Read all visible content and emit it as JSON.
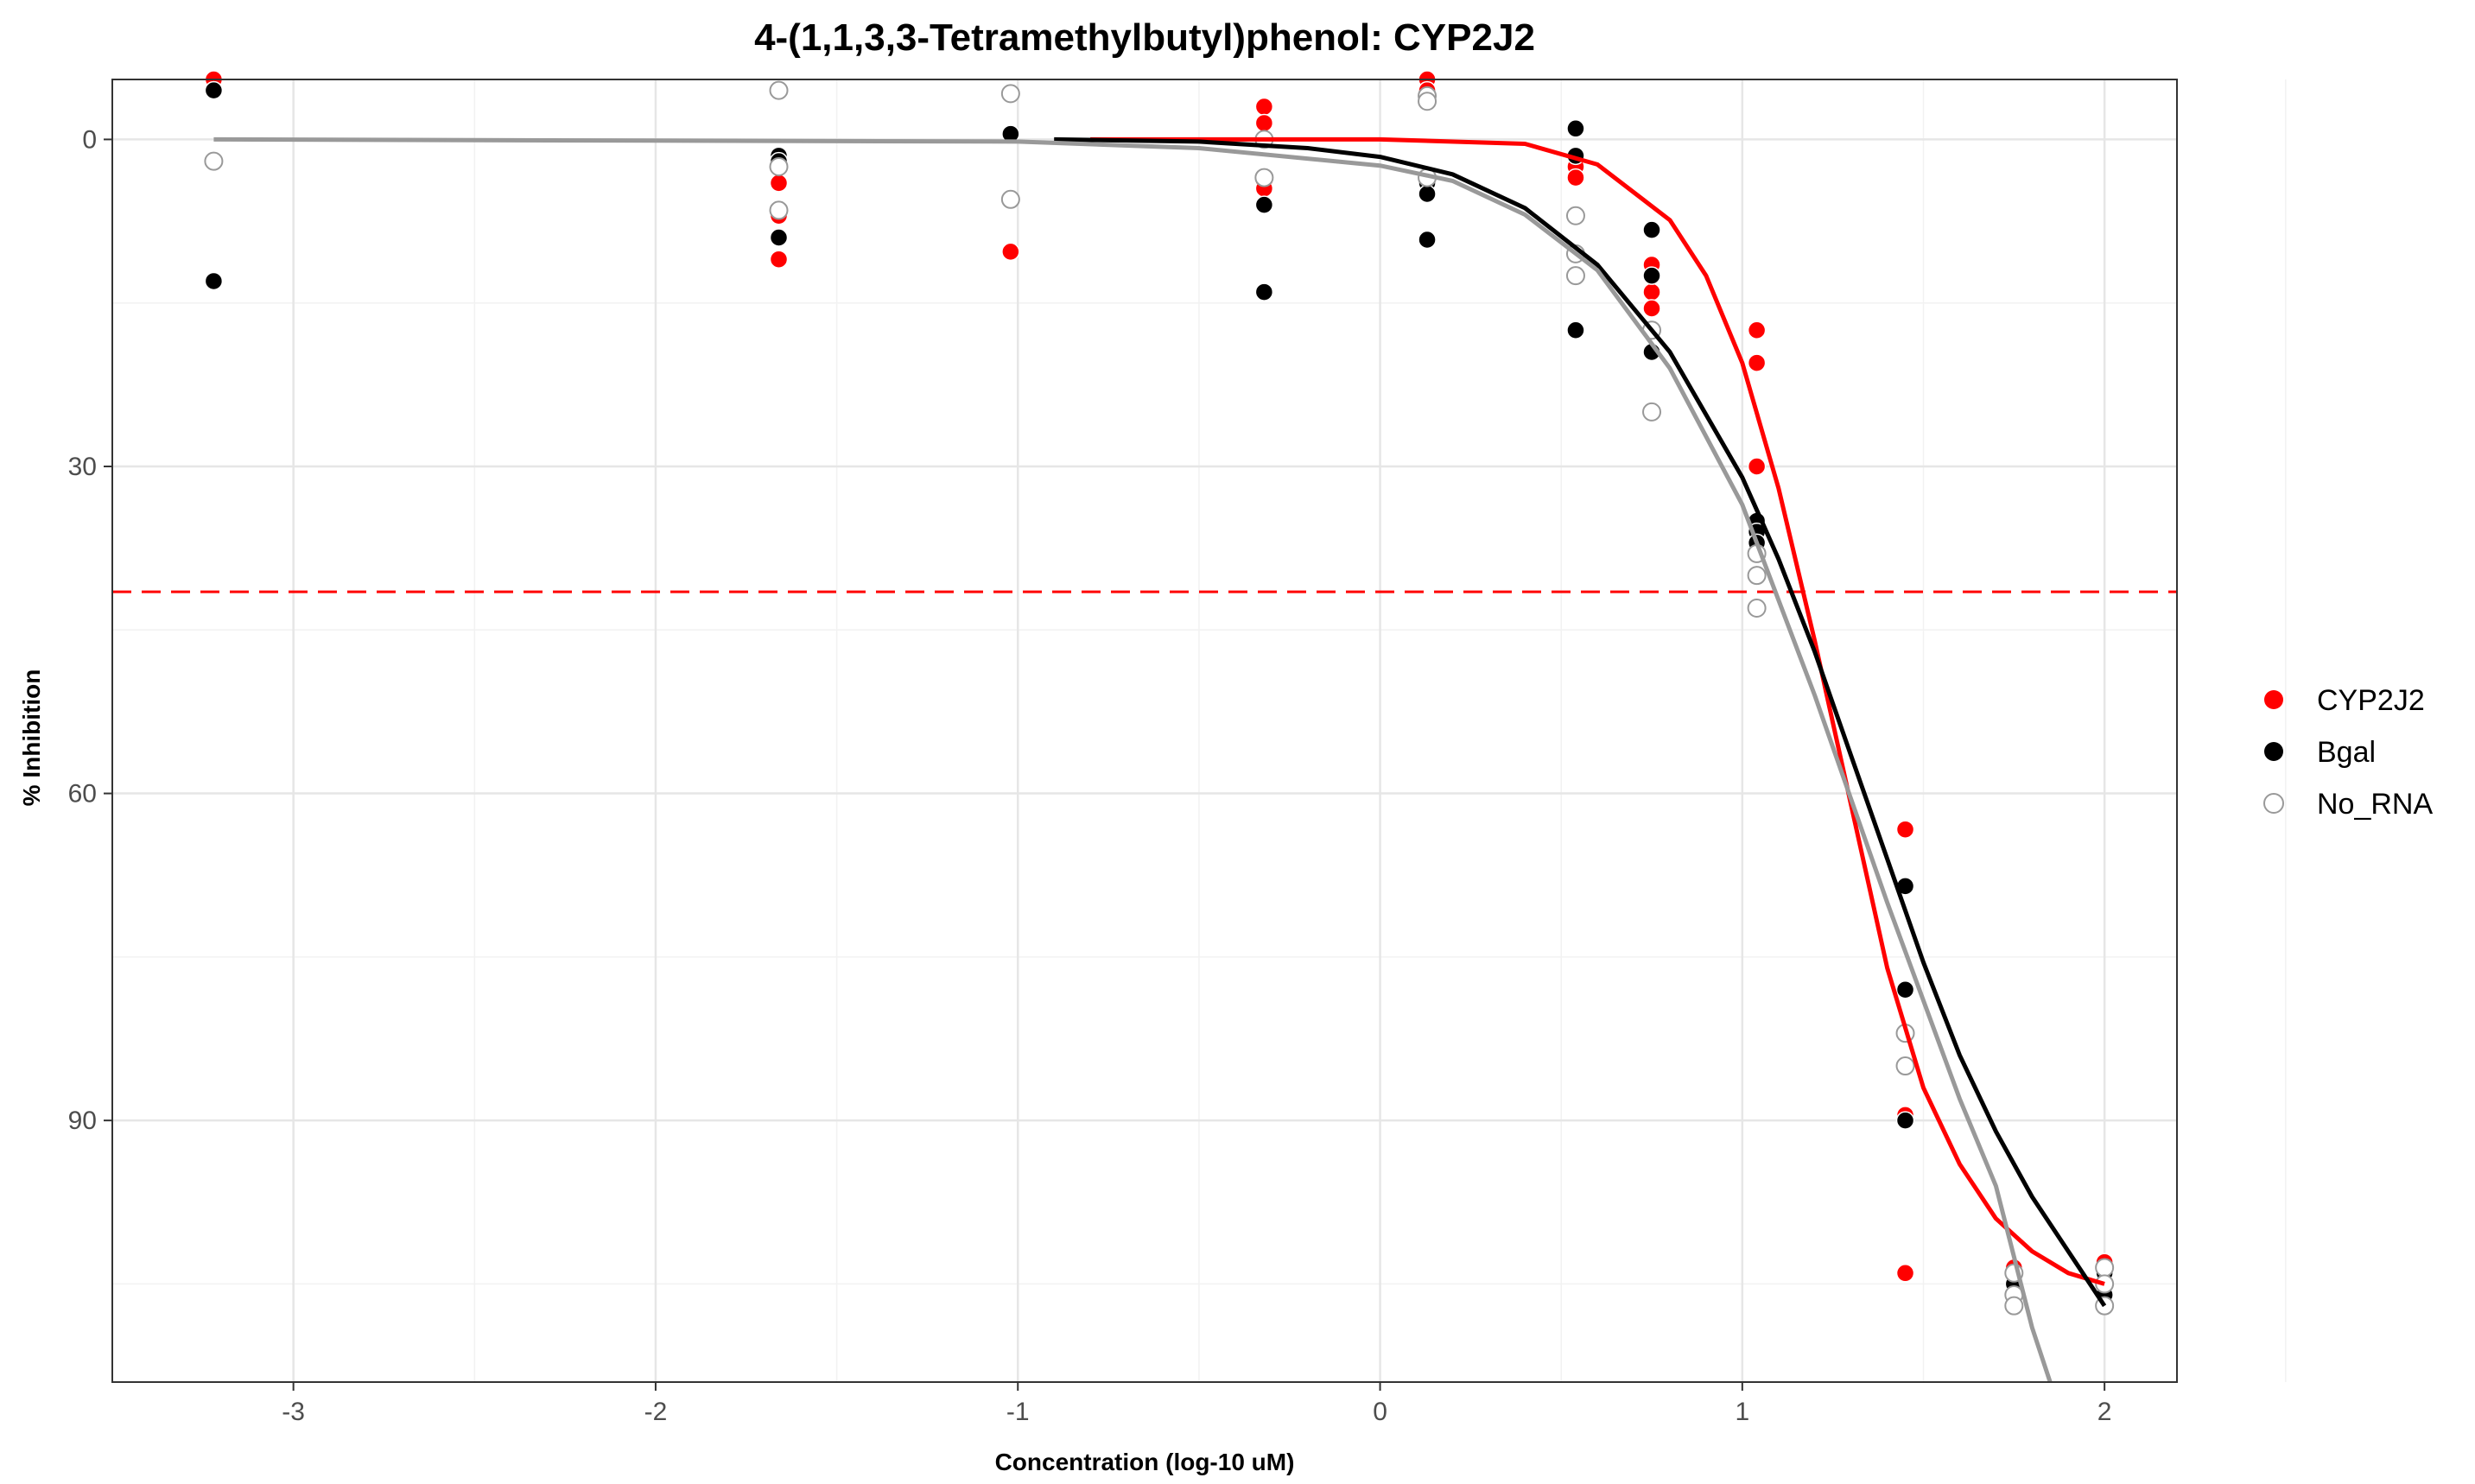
{
  "chart_data": {
    "type": "scatter",
    "title": "4-(1,1,3,3-Tetramethylbutyl)phenol: CYP2J2",
    "xlabel": "Concentration (log-10 uM)",
    "ylabel": "% Inhibition",
    "xlim": [
      -3.5,
      2.2
    ],
    "ylim": [
      -5.5,
      114
    ],
    "y_reversed": true,
    "x_ticks": [
      -3,
      -2,
      -1,
      0,
      1,
      2
    ],
    "y_ticks": [
      0,
      30,
      60,
      90
    ],
    "grid": true,
    "legend_position": "right",
    "threshold_line": {
      "value": 41.5,
      "color": "#ff0000",
      "style": "dashed"
    },
    "series": [
      {
        "name": "CYP2J2",
        "color": "#ff0000",
        "marker": "filled",
        "points": [
          [
            -3.22,
            -5.5
          ],
          [
            -3.22,
            -4.5
          ],
          [
            -1.66,
            4
          ],
          [
            -1.66,
            7
          ],
          [
            -1.66,
            11
          ],
          [
            -1.02,
            10.3
          ],
          [
            -0.32,
            -3
          ],
          [
            -0.32,
            -1.5
          ],
          [
            -0.32,
            4
          ],
          [
            -0.32,
            4.5
          ],
          [
            0.13,
            -5.5
          ],
          [
            0.13,
            -4.5
          ],
          [
            0.54,
            2.5
          ],
          [
            0.54,
            3.5
          ],
          [
            0.75,
            11.5
          ],
          [
            0.75,
            14
          ],
          [
            0.75,
            15.5
          ],
          [
            1.04,
            17.5
          ],
          [
            1.04,
            20.5
          ],
          [
            1.04,
            30
          ],
          [
            1.45,
            63.3
          ],
          [
            1.45,
            89.5
          ],
          [
            1.45,
            104
          ],
          [
            1.75,
            103.5
          ],
          [
            1.75,
            105
          ],
          [
            1.75,
            106
          ],
          [
            2.0,
            103
          ],
          [
            2.0,
            104
          ],
          [
            2.0,
            105
          ],
          [
            2.0,
            106
          ]
        ],
        "curve": [
          [
            -0.8,
            0
          ],
          [
            0,
            0
          ],
          [
            0.4,
            0.4
          ],
          [
            0.6,
            2.3
          ],
          [
            0.8,
            7.4
          ],
          [
            0.9,
            12.5
          ],
          [
            1.0,
            20.5
          ],
          [
            1.1,
            32
          ],
          [
            1.2,
            46
          ],
          [
            1.3,
            61
          ],
          [
            1.4,
            76
          ],
          [
            1.5,
            87
          ],
          [
            1.6,
            94
          ],
          [
            1.7,
            99
          ],
          [
            1.8,
            102
          ],
          [
            1.9,
            104
          ],
          [
            2.0,
            105
          ]
        ]
      },
      {
        "name": "Bgal",
        "color": "#000000",
        "marker": "filled",
        "points": [
          [
            -3.22,
            -4.5
          ],
          [
            -3.22,
            13
          ],
          [
            -1.66,
            1.5
          ],
          [
            -1.66,
            2
          ],
          [
            -1.66,
            9
          ],
          [
            -1.02,
            -0.5
          ],
          [
            -0.32,
            6
          ],
          [
            -0.32,
            14
          ],
          [
            0.13,
            4
          ],
          [
            0.13,
            5
          ],
          [
            0.13,
            9.2
          ],
          [
            0.54,
            -1
          ],
          [
            0.54,
            1.5
          ],
          [
            0.54,
            17.5
          ],
          [
            0.75,
            8.3
          ],
          [
            0.75,
            12.5
          ],
          [
            0.75,
            19.5
          ],
          [
            1.04,
            35
          ],
          [
            1.04,
            36
          ],
          [
            1.04,
            37
          ],
          [
            1.45,
            68.5
          ],
          [
            1.45,
            78
          ],
          [
            1.45,
            90
          ],
          [
            1.75,
            104
          ],
          [
            1.75,
            105
          ],
          [
            1.75,
            106
          ],
          [
            1.75,
            107
          ],
          [
            2.0,
            104
          ],
          [
            2.0,
            105
          ],
          [
            2.0,
            106
          ],
          [
            2.0,
            107
          ]
        ],
        "curve": [
          [
            -0.9,
            0
          ],
          [
            -0.5,
            0.2
          ],
          [
            -0.2,
            0.8
          ],
          [
            0,
            1.6
          ],
          [
            0.2,
            3.2
          ],
          [
            0.4,
            6.3
          ],
          [
            0.6,
            11.5
          ],
          [
            0.8,
            19.5
          ],
          [
            1.0,
            31
          ],
          [
            1.1,
            38.5
          ],
          [
            1.2,
            47
          ],
          [
            1.3,
            56.5
          ],
          [
            1.4,
            66
          ],
          [
            1.5,
            75.5
          ],
          [
            1.6,
            84
          ],
          [
            1.7,
            91
          ],
          [
            1.8,
            97
          ],
          [
            1.9,
            102
          ],
          [
            2.0,
            107
          ]
        ]
      },
      {
        "name": "No_RNA",
        "color": "#999999",
        "marker": "open",
        "points": [
          [
            -3.22,
            2
          ],
          [
            -1.66,
            2.5
          ],
          [
            -1.66,
            6.5
          ],
          [
            -1.66,
            -4.5
          ],
          [
            -1.02,
            -4.2
          ],
          [
            -1.02,
            5.5
          ],
          [
            -0.32,
            0
          ],
          [
            -0.32,
            3.5
          ],
          [
            0.13,
            -4
          ],
          [
            0.13,
            -3.5
          ],
          [
            0.13,
            3.5
          ],
          [
            0.54,
            7
          ],
          [
            0.54,
            10.5
          ],
          [
            0.54,
            12.5
          ],
          [
            0.75,
            17.5
          ],
          [
            0.75,
            25
          ],
          [
            1.04,
            38
          ],
          [
            1.04,
            40
          ],
          [
            1.04,
            43
          ],
          [
            1.45,
            82
          ],
          [
            1.45,
            85
          ],
          [
            1.75,
            104
          ],
          [
            1.75,
            106
          ],
          [
            1.75,
            107
          ],
          [
            2.0,
            103.5
          ],
          [
            2.0,
            105
          ],
          [
            2.0,
            107
          ]
        ],
        "curve": [
          [
            -3.22,
            0
          ],
          [
            -1,
            0.2
          ],
          [
            -0.5,
            0.8
          ],
          [
            0,
            2.4
          ],
          [
            0.2,
            3.8
          ],
          [
            0.4,
            6.9
          ],
          [
            0.6,
            12
          ],
          [
            0.8,
            21
          ],
          [
            1.0,
            33.5
          ],
          [
            1.2,
            51
          ],
          [
            1.4,
            70
          ],
          [
            1.6,
            88
          ],
          [
            1.7,
            96
          ],
          [
            1.8,
            109
          ],
          [
            1.85,
            114
          ]
        ]
      }
    ]
  }
}
